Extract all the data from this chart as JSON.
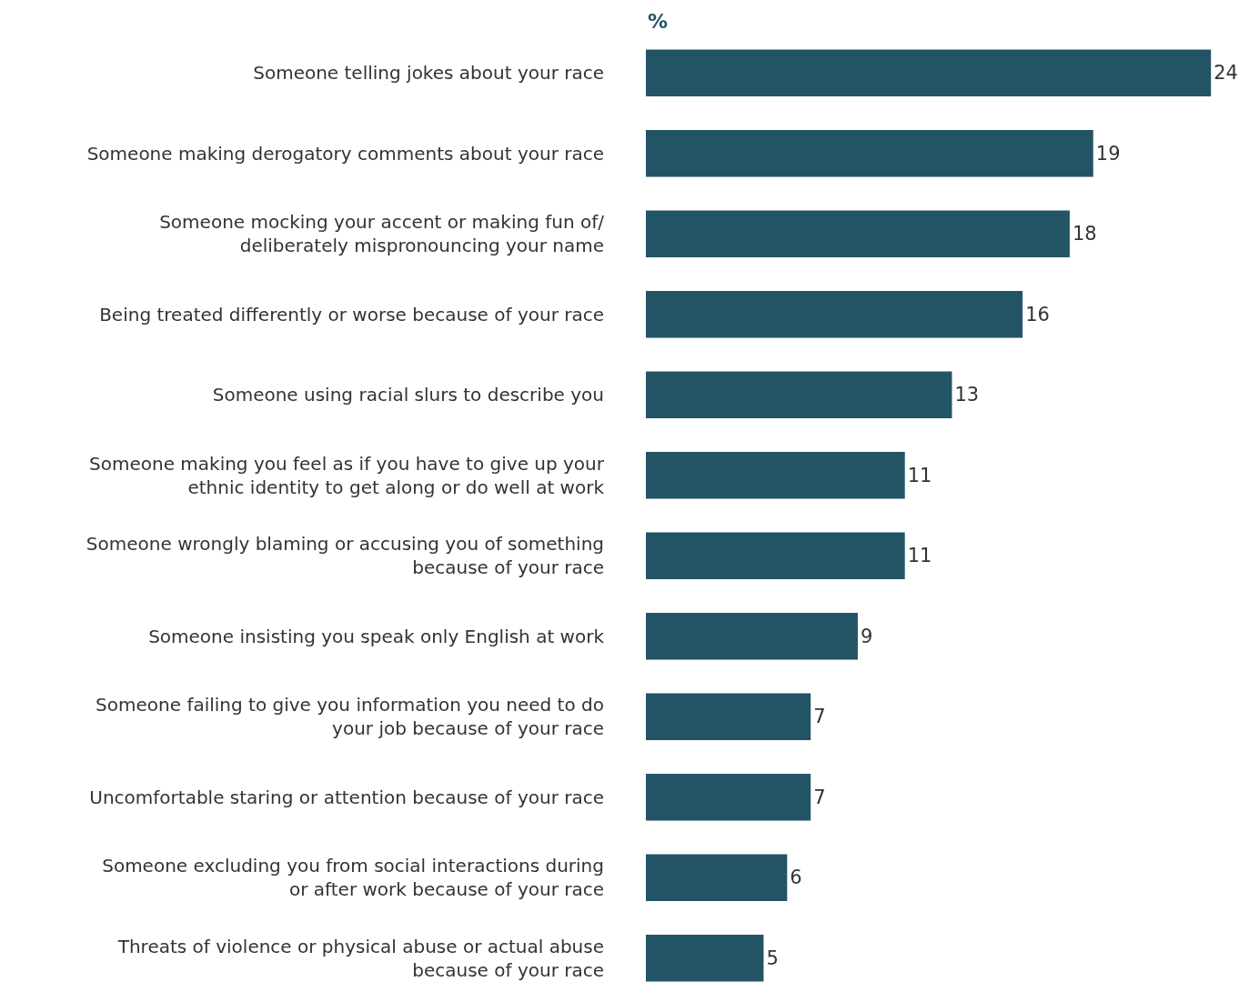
{
  "chart_data": {
    "type": "bar",
    "orientation": "horizontal",
    "xlabel": "%",
    "categories": [
      "Someone telling jokes about your race",
      "Someone making derogatory comments about your race",
      "Someone mocking your accent or making fun of/ deliberately mispronouncing your name",
      "Being treated differently or worse because of your race",
      "Someone using racial slurs to describe you",
      "Someone making you feel as if you have to give up your ethnic identity to get along or do well at work",
      "Someone wrongly blaming or accusing you of something because of your race",
      "Someone insisting you speak only English at work",
      "Someone failing to give you information you need to do your job because of your race",
      "Uncomfortable staring or attention because of your race",
      "Someone excluding you from social interactions during or after work because of your race",
      "Threats of violence or physical abuse or actual abuse because of your race"
    ],
    "values": [
      24,
      19,
      18,
      16,
      13,
      11,
      11,
      9,
      7,
      7,
      6,
      5
    ],
    "color": "#235466",
    "data_labels": true
  }
}
